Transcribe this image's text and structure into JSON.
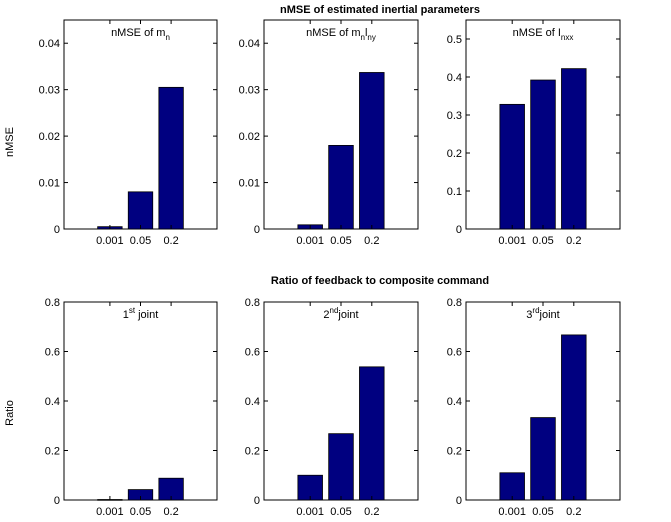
{
  "colors": {
    "bar": "#000080",
    "axis": "#000000",
    "background": "#ffffff"
  },
  "rows": [
    {
      "title": "nMSE of estimated inertial parameters",
      "ylabel": "nMSE"
    },
    {
      "title": "Ratio of feedback to composite command",
      "ylabel": "Ratio"
    }
  ],
  "chart_data": [
    {
      "type": "bar",
      "title": {
        "text": "nMSE of m",
        "sub": "n"
      },
      "categories": [
        "0.001",
        "0.05",
        "0.2"
      ],
      "values": [
        0.0005,
        0.008,
        0.0305
      ],
      "ylim": [
        0,
        0.045
      ],
      "yticks": [
        "0",
        "0.01",
        "0.02",
        "0.03",
        "0.04"
      ],
      "ytick_values": [
        0,
        0.01,
        0.02,
        0.03,
        0.04
      ]
    },
    {
      "type": "bar",
      "title": {
        "text": "nMSE of m",
        "sub": "n",
        "text2": "l",
        "sub2": "ny"
      },
      "categories": [
        "0.001",
        "0.05",
        "0.2"
      ],
      "values": [
        0.0009,
        0.018,
        0.0337
      ],
      "ylim": [
        0,
        0.045
      ],
      "yticks": [
        "0",
        "0.01",
        "0.02",
        "0.03",
        "0.04"
      ],
      "ytick_values": [
        0,
        0.01,
        0.02,
        0.03,
        0.04
      ]
    },
    {
      "type": "bar",
      "title": {
        "text": "nMSE of I",
        "sub": "nxx"
      },
      "categories": [
        "0.001",
        "0.05",
        "0.2"
      ],
      "values": [
        0.328,
        0.392,
        0.422
      ],
      "ylim": [
        0,
        0.55
      ],
      "yticks": [
        "0",
        "0.1",
        "0.2",
        "0.3",
        "0.4",
        "0.5"
      ],
      "ytick_values": [
        0,
        0.1,
        0.2,
        0.3,
        0.4,
        0.5
      ]
    },
    {
      "type": "bar",
      "title": {
        "text": "1",
        "sup": "st",
        "text2": " joint"
      },
      "categories": [
        "0.001",
        "0.05",
        "0.2"
      ],
      "values": [
        0.002,
        0.042,
        0.088
      ],
      "ylim": [
        0,
        0.8
      ],
      "yticks": [
        "0",
        "0.2",
        "0.4",
        "0.6",
        "0.8"
      ],
      "ytick_values": [
        0,
        0.2,
        0.4,
        0.6,
        0.8
      ]
    },
    {
      "type": "bar",
      "title": {
        "text": "2",
        "sup": "nd",
        "text2": "joint"
      },
      "categories": [
        "0.001",
        "0.05",
        "0.2"
      ],
      "values": [
        0.1,
        0.268,
        0.538
      ],
      "ylim": [
        0,
        0.8
      ],
      "yticks": [
        "0",
        "0.2",
        "0.4",
        "0.6",
        "0.8"
      ],
      "ytick_values": [
        0,
        0.2,
        0.4,
        0.6,
        0.8
      ]
    },
    {
      "type": "bar",
      "title": {
        "text": "3",
        "sup": "rd",
        "text2": "joint"
      },
      "categories": [
        "0.001",
        "0.05",
        "0.2"
      ],
      "values": [
        0.11,
        0.333,
        0.667
      ],
      "ylim": [
        0,
        0.8
      ],
      "yticks": [
        "0",
        "0.2",
        "0.4",
        "0.6",
        "0.8"
      ],
      "ytick_values": [
        0,
        0.2,
        0.4,
        0.6,
        0.8
      ]
    }
  ]
}
